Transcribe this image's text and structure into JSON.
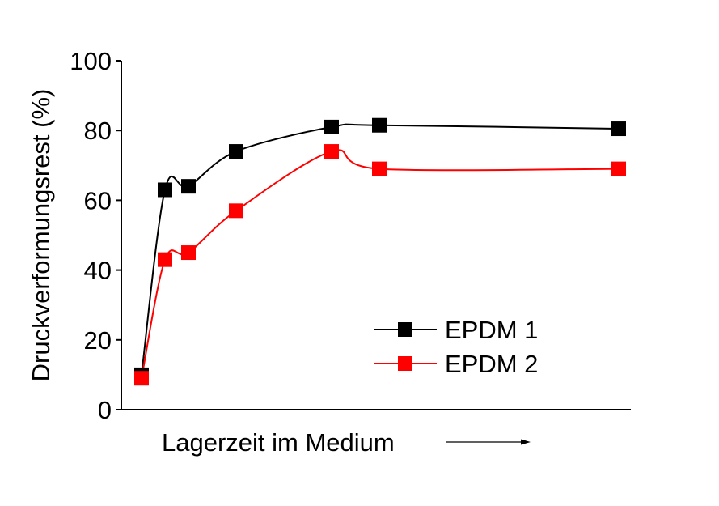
{
  "chart_data": {
    "type": "line",
    "title": "",
    "xlabel": "Lagerzeit im Medium",
    "ylabel": "Druckverformungsrest (%)",
    "ylim": [
      0,
      100
    ],
    "yticks": [
      "0",
      "20",
      "40",
      "60",
      "80",
      "100"
    ],
    "x_ticks_shown": false,
    "grid": false,
    "legend_position": "bottom-right",
    "x": [
      0,
      0.5,
      1,
      2,
      4,
      5,
      10
    ],
    "series": [
      {
        "name": "EPDM 1",
        "color": "#000000",
        "marker": "square",
        "values": [
          10,
          63,
          64,
          74,
          81,
          81.5,
          80.5
        ]
      },
      {
        "name": "EPDM 2",
        "color": "#ff0000",
        "marker": "square",
        "values": [
          9,
          43,
          45,
          57,
          74,
          69,
          69
        ]
      }
    ]
  }
}
